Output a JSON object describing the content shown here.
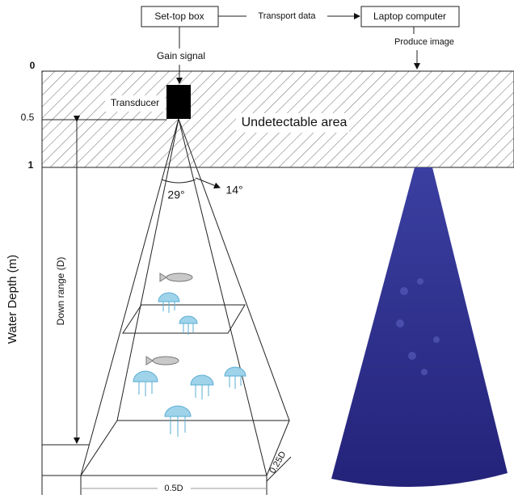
{
  "boxes": {
    "settop": "Set-top box",
    "laptop": "Laptop computer"
  },
  "arrows": {
    "transport": "Transport data",
    "gain": "Gain signal",
    "produce": "Produce image"
  },
  "axis": {
    "title": "Water Depth (m)",
    "ticks": [
      "0",
      "0.5",
      "1"
    ]
  },
  "labels": {
    "transducer": "Transducer",
    "undetectable": "Undetectable area",
    "angle_wide": "29°",
    "angle_narrow": "14°",
    "down_range": "Down range (D)",
    "width": "0.5D",
    "depth": "0.25D"
  }
}
